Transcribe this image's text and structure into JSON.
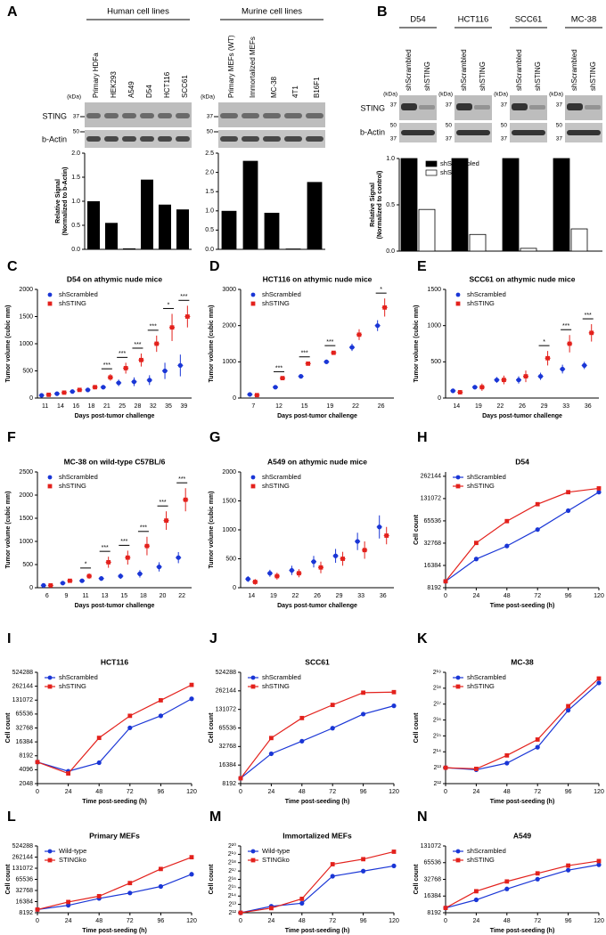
{
  "figure": {
    "panels": [
      "A",
      "B",
      "C",
      "D",
      "E",
      "F",
      "G",
      "H",
      "I",
      "J",
      "K",
      "L",
      "M",
      "N"
    ],
    "human_header": "Human cell lines",
    "murine_header": "Murine cell lines",
    "blot": {
      "kda": "(kDa)",
      "marker37": "37",
      "marker50": "50",
      "sting": "STING",
      "actin": "b-Actin"
    },
    "b_lane_labels": [
      "shScrambled",
      "shSTING"
    ]
  },
  "chart_data": [
    {
      "type": "bar",
      "categories": [
        "Primary HDFa",
        "HEK293",
        "A549",
        "D54",
        "HCT116",
        "SCC61"
      ],
      "values": [
        1.0,
        0.55,
        0.02,
        1.45,
        0.93,
        0.83
      ],
      "color": "#000000",
      "ylabel": [
        "Relative Signal",
        "(Normalized to b-Actin)"
      ],
      "ylim": [
        0,
        2
      ],
      "yticks": [
        {
          "value": 0,
          "label": "0.0"
        },
        0.5,
        {
          "value": 1,
          "label": "1.0"
        },
        1.5,
        {
          "value": 2,
          "label": "2.0"
        }
      ]
    },
    {
      "type": "bar",
      "categories": [
        "Primary MEFs (WT)",
        "Immortalized MEFs",
        "MC-38",
        "4T1",
        "B16F1"
      ],
      "values": [
        1.0,
        2.3,
        0.95,
        0.02,
        1.75
      ],
      "color": "#000000",
      "ylim": [
        0,
        2.5
      ],
      "yticks": [
        {
          "value": 0,
          "label": "0.0"
        },
        0.5,
        {
          "value": 1,
          "label": "1.0"
        },
        1.5,
        {
          "value": 2,
          "label": "2.0"
        },
        2.5
      ]
    },
    {
      "type": "grouped_bar",
      "categories": [
        "D54",
        "HCT116",
        "SCC61",
        "MC-38"
      ],
      "ylabel": [
        "Relative Signal",
        "(Normalized to control)"
      ],
      "series": [
        {
          "name": "shScrambled",
          "color": "#000000",
          "values": [
            1.0,
            1.0,
            1.0,
            1.0
          ]
        },
        {
          "name": "shSTING",
          "color": "#ffffff",
          "values": [
            0.45,
            0.18,
            0.03,
            0.24
          ]
        }
      ],
      "ylim": [
        0,
        1
      ],
      "yticks": [
        {
          "value": 0,
          "label": "0.0"
        },
        0.5,
        {
          "value": 1,
          "label": "1.0"
        }
      ],
      "legend": "upper right"
    },
    {
      "type": "dot",
      "title": "D54 on athymic nude mice",
      "xlabel": "Days post-tumor challenge",
      "ylabel": "Tumor volume (cubic mm)",
      "categories": [
        "11",
        "14",
        "16",
        "18",
        "21",
        "25",
        "28",
        "32",
        "35",
        "39"
      ],
      "series": [
        {
          "name": "shScrambled",
          "color": "#1a36d6",
          "values": [
            50,
            80,
            120,
            150,
            200,
            280,
            300,
            330,
            500,
            600
          ],
          "errors": [
            10,
            15,
            20,
            25,
            40,
            60,
            80,
            90,
            150,
            200
          ]
        },
        {
          "name": "shSTING",
          "color": "#e3211c",
          "values": [
            60,
            100,
            150,
            200,
            380,
            550,
            700,
            1000,
            1300,
            1500
          ],
          "errors": [
            10,
            20,
            30,
            40,
            60,
            100,
            120,
            150,
            250,
            200
          ]
        }
      ],
      "significance": [
        null,
        null,
        null,
        null,
        "***",
        "***",
        "***",
        "***",
        "*",
        "***"
      ],
      "ylim": [
        0,
        2000
      ],
      "yticks": [
        0,
        500,
        1000,
        1500,
        2000
      ],
      "legend": "upper left"
    },
    {
      "type": "dot",
      "title": "HCT116 on athymic nude mice",
      "xlabel": "Days post-tumor challenge",
      "ylabel": "Tumor volume (cubic mm)",
      "categories": [
        "7",
        "12",
        "15",
        "19",
        "22",
        "26"
      ],
      "series": [
        {
          "name": "shScrambled",
          "color": "#1a36d6",
          "values": [
            100,
            300,
            600,
            1000,
            1400,
            2000
          ],
          "errors": [
            30,
            40,
            50,
            60,
            100,
            150
          ]
        },
        {
          "name": "shSTING",
          "color": "#e3211c",
          "values": [
            80,
            550,
            950,
            1250,
            1750,
            2500
          ],
          "errors": [
            20,
            30,
            40,
            50,
            150,
            250
          ]
        }
      ],
      "significance": [
        null,
        "***",
        "***",
        "***",
        null,
        "*"
      ],
      "ylim": [
        0,
        3000
      ],
      "yticks": [
        0,
        1000,
        2000,
        3000
      ],
      "legend": "upper left"
    },
    {
      "type": "dot",
      "title": "SCC61 on athymic nude mice",
      "xlabel": "Days post-tumor challenge",
      "ylabel": "Tumor volume (cubic mm)",
      "categories": [
        "14",
        "19",
        "22",
        "26",
        "29",
        "33",
        "36"
      ],
      "series": [
        {
          "name": "shScrambled",
          "color": "#1a36d6",
          "values": [
            100,
            150,
            250,
            250,
            300,
            400,
            450
          ],
          "errors": [
            30,
            30,
            40,
            50,
            50,
            60,
            50
          ]
        },
        {
          "name": "shSTING",
          "color": "#e3211c",
          "values": [
            80,
            150,
            250,
            300,
            550,
            750,
            900
          ],
          "errors": [
            30,
            50,
            60,
            80,
            100,
            120,
            120
          ]
        }
      ],
      "significance": [
        null,
        null,
        null,
        null,
        "*",
        "***",
        "***"
      ],
      "ylim": [
        0,
        1500
      ],
      "yticks": [
        0,
        500,
        1000,
        1500
      ],
      "legend": "upper left"
    },
    {
      "type": "dot",
      "title": "MC-38 on wild-type C57BL/6",
      "xlabel": "Days post-tumor challenge",
      "ylabel": "Tumor volume (cubic mm)",
      "categories": [
        "6",
        "9",
        "11",
        "13",
        "15",
        "18",
        "20",
        "22"
      ],
      "series": [
        {
          "name": "shScrambled",
          "color": "#1a36d6",
          "values": [
            50,
            100,
            150,
            200,
            250,
            300,
            450,
            650
          ],
          "errors": [
            10,
            20,
            30,
            50,
            60,
            80,
            100,
            120
          ]
        },
        {
          "name": "shSTING",
          "color": "#e3211c",
          "values": [
            50,
            150,
            250,
            550,
            650,
            900,
            1450,
            1900
          ],
          "errors": [
            10,
            30,
            60,
            120,
            150,
            200,
            200,
            250
          ]
        }
      ],
      "significance": [
        null,
        null,
        "*",
        "***",
        "***",
        "***",
        "***",
        "***"
      ],
      "ylim": [
        0,
        2500
      ],
      "yticks": [
        0,
        500,
        1000,
        1500,
        2000,
        2500
      ],
      "legend": "upper left"
    },
    {
      "type": "dot",
      "title": "A549 on athymic nude mice",
      "xlabel": "Days post-tumor challenge",
      "ylabel": "Tumor volume (cubic mm)",
      "categories": [
        "14",
        "19",
        "22",
        "26",
        "29",
        "33",
        "36"
      ],
      "series": [
        {
          "name": "shScrambled",
          "color": "#1a36d6",
          "values": [
            150,
            250,
            300,
            450,
            550,
            800,
            1050
          ],
          "errors": [
            50,
            60,
            80,
            100,
            120,
            150,
            200
          ]
        },
        {
          "name": "shSTING",
          "color": "#e3211c",
          "values": [
            100,
            200,
            250,
            350,
            500,
            650,
            900
          ],
          "errors": [
            50,
            60,
            70,
            100,
            120,
            150,
            150
          ]
        }
      ],
      "ylim": [
        0,
        2000
      ],
      "yticks": [
        0,
        500,
        1000,
        1500,
        2000
      ],
      "legend": "upper left"
    },
    {
      "type": "line",
      "title": "D54",
      "xlabel": "Time post-seeding (h)",
      "ylabel": "Cell count",
      "log_scale": true,
      "x": [
        0,
        24,
        48,
        72,
        96,
        120
      ],
      "xlim": [
        0,
        120
      ],
      "xticks": [
        0,
        24,
        48,
        72,
        96,
        120
      ],
      "series": [
        {
          "name": "shScrambled",
          "color": "#1a36d6",
          "values": [
            10000,
            20000,
            30000,
            50000,
            90000,
            160000
          ]
        },
        {
          "name": "shSTING",
          "color": "#e3211c",
          "values": [
            10000,
            33000,
            65000,
            110000,
            160000,
            180000
          ]
        }
      ],
      "ylim": [
        8192,
        300000
      ],
      "yticks": [
        8192,
        16384,
        32768,
        65536,
        131072,
        262144
      ],
      "legend": "upper left"
    },
    {
      "type": "line",
      "title": "HCT116",
      "xlabel": "Time post-seeding (h)",
      "ylabel": "Cell count",
      "log_scale": true,
      "x": [
        0,
        24,
        48,
        72,
        96,
        120
      ],
      "xlim": [
        0,
        120
      ],
      "xticks": [
        0,
        24,
        48,
        72,
        96,
        120
      ],
      "series": [
        {
          "name": "shScrambled",
          "color": "#1a36d6",
          "values": [
            6000,
            3800,
            5800,
            33000,
            60000,
            140000
          ]
        },
        {
          "name": "shSTING",
          "color": "#e3211c",
          "values": [
            6000,
            3400,
            20000,
            60000,
            130000,
            280000
          ]
        }
      ],
      "ylim": [
        2048,
        524288
      ],
      "yticks": [
        2048,
        4096,
        8192,
        16384,
        32768,
        65536,
        131072,
        262144,
        524288
      ],
      "legend": "upper left"
    },
    {
      "type": "line",
      "title": "SCC61",
      "xlabel": "Time post-seeding (h)",
      "ylabel": "Cell count",
      "log_scale": true,
      "x": [
        0,
        24,
        48,
        72,
        96,
        120
      ],
      "xlim": [
        0,
        120
      ],
      "xticks": [
        0,
        24,
        48,
        72,
        96,
        120
      ],
      "series": [
        {
          "name": "shScrambled",
          "color": "#1a36d6",
          "values": [
            10000,
            25000,
            40000,
            65000,
            110000,
            150000
          ]
        },
        {
          "name": "shSTING",
          "color": "#e3211c",
          "values": [
            10000,
            45000,
            95000,
            155000,
            245000,
            250000
          ]
        }
      ],
      "ylim": [
        8192,
        524288
      ],
      "yticks": [
        8192,
        16384,
        32768,
        65536,
        131072,
        262144,
        524288
      ],
      "legend": "upper left"
    },
    {
      "type": "line",
      "title": "MC-38",
      "xlabel": "Time post-seeding (h)",
      "ylabel": "Cell count",
      "log_scale": true,
      "x": [
        0,
        24,
        48,
        72,
        96,
        120
      ],
      "xlim": [
        0,
        120
      ],
      "xticks": [
        0,
        24,
        48,
        72,
        96,
        120
      ],
      "series": [
        {
          "name": "shScrambled",
          "color": "#1a36d6",
          "values": [
            8192,
            7500,
            10000,
            20000,
            100000,
            330000
          ]
        },
        {
          "name": "shSTING",
          "color": "#e3211c",
          "values": [
            8192,
            7800,
            14000,
            28000,
            120000,
            400000
          ]
        }
      ],
      "ylim": [
        4096,
        524288
      ],
      "yticks": [
        {
          "value": 4096,
          "label": "2¹²"
        },
        {
          "value": 8192,
          "label": "2¹³"
        },
        {
          "value": 16384,
          "label": "2¹⁴"
        },
        {
          "value": 32768,
          "label": "2¹⁵"
        },
        {
          "value": 65536,
          "label": "2¹⁶"
        },
        {
          "value": 131072,
          "label": "2¹⁷"
        },
        {
          "value": 262144,
          "label": "2¹⁸"
        },
        {
          "value": 524288,
          "label": "2¹⁹"
        }
      ],
      "legend": "upper left"
    },
    {
      "type": "line",
      "title": "Primary MEFs",
      "xlabel": "Time post-seeding (h)",
      "ylabel": "Cell count",
      "log_scale": true,
      "x": [
        0,
        24,
        48,
        72,
        96,
        120
      ],
      "xlim": [
        0,
        120
      ],
      "xticks": [
        0,
        24,
        48,
        72,
        96,
        120
      ],
      "series": [
        {
          "name": "Wild-type",
          "color": "#1a36d6",
          "values": [
            10000,
            13000,
            20000,
            28000,
            42000,
            90000
          ]
        },
        {
          "name": "STINGko",
          "color": "#e3211c",
          "values": [
            10000,
            16000,
            23000,
            52000,
            125000,
            260000
          ]
        }
      ],
      "ylim": [
        8192,
        524288
      ],
      "yticks": [
        8192,
        16384,
        32768,
        65536,
        131072,
        262144,
        524288
      ],
      "legend": "upper left"
    },
    {
      "type": "line",
      "title": "Immortalized MEFs",
      "xlabel": "Time post-seeding (h)",
      "ylabel": "Cell count",
      "log_scale": true,
      "x": [
        0,
        24,
        48,
        72,
        96,
        120
      ],
      "xlim": [
        0,
        120
      ],
      "xticks": [
        0,
        24,
        48,
        72,
        96,
        120
      ],
      "series": [
        {
          "name": "Wild-type",
          "color": "#1a36d6",
          "values": [
            4096,
            7000,
            9000,
            85000,
            130000,
            200000
          ]
        },
        {
          "name": "STINGko",
          "color": "#e3211c",
          "values": [
            4096,
            6000,
            13000,
            230000,
            350000,
            650000
          ]
        }
      ],
      "ylim": [
        4096,
        1048576
      ],
      "yticks": [
        {
          "value": 4096,
          "label": "2¹²"
        },
        {
          "value": 8192,
          "label": "2¹³"
        },
        {
          "value": 16384,
          "label": "2¹⁴"
        },
        {
          "value": 32768,
          "label": "2¹⁵"
        },
        {
          "value": 65536,
          "label": "2¹⁶"
        },
        {
          "value": 131072,
          "label": "2¹⁷"
        },
        {
          "value": 262144,
          "label": "2¹⁸"
        },
        {
          "value": 524288,
          "label": "2¹⁹"
        },
        {
          "value": 1048576,
          "label": "2²⁰"
        }
      ],
      "legend": "upper left"
    },
    {
      "type": "line",
      "title": "A549",
      "xlabel": "Time post-seeding (h)",
      "ylabel": "Cell count",
      "log_scale": true,
      "x": [
        0,
        24,
        48,
        72,
        96,
        120
      ],
      "xlim": [
        0,
        120
      ],
      "xticks": [
        0,
        24,
        48,
        72,
        96,
        120
      ],
      "series": [
        {
          "name": "shScrambled",
          "color": "#1a36d6",
          "values": [
            10000,
            14000,
            22000,
            33000,
            48000,
            60000
          ]
        },
        {
          "name": "shSTING",
          "color": "#e3211c",
          "values": [
            10000,
            20000,
            30000,
            42000,
            58000,
            70000
          ]
        }
      ],
      "ylim": [
        8192,
        131072
      ],
      "yticks": [
        8192,
        16384,
        32768,
        65536,
        131072
      ],
      "legend": "upper left"
    }
  ]
}
